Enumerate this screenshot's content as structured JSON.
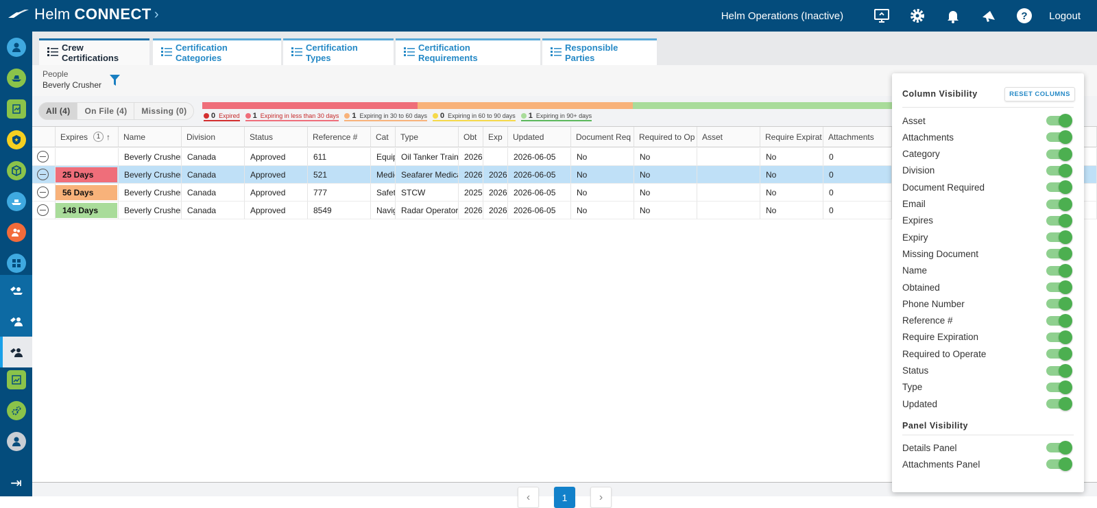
{
  "app": {
    "name_light": "Helm",
    "name_bold": "CONNECT",
    "chevron": "›"
  },
  "header": {
    "org": "Helm Operations (Inactive)",
    "logout": "Logout",
    "icons": [
      "monitor-icon",
      "gear-icon",
      "bell-icon",
      "megaphone-icon",
      "help-icon"
    ]
  },
  "sidebar": {
    "icons": [
      "user",
      "boat",
      "clipboard",
      "badge",
      "cube",
      "ship",
      "people",
      "grid",
      "crew-ship",
      "crew-person",
      "crew-active",
      "chart",
      "gears",
      "profile"
    ],
    "collapse": "⇥"
  },
  "tabs": [
    {
      "label": "Crew Certifications"
    },
    {
      "label": "Certification Categories"
    },
    {
      "label": "Certification Types"
    },
    {
      "label": "Certification Requirements"
    },
    {
      "label": "Responsible Parties"
    }
  ],
  "filter": {
    "label": "People",
    "value": "Beverly Crusher"
  },
  "segments": {
    "all": "All (4)",
    "onfile": "On File (4)",
    "missing": "Missing (0)"
  },
  "progress": {
    "colors": [
      "#ef6e7a",
      "#f8b27a",
      "#a9dc9a"
    ],
    "fractions": [
      0.25,
      0.25,
      0.5
    ]
  },
  "legend": [
    {
      "count": "0",
      "text": "Expired",
      "color": "#d32f2f",
      "line": "#d32f2f",
      "textcolor": "#c62828"
    },
    {
      "count": "1",
      "text": "Expiring in less than 30 days",
      "color": "#ef6e7a",
      "line": "#ef6e7a",
      "textcolor": "#c62828"
    },
    {
      "count": "1",
      "text": "Expiring in 30 to 60 days",
      "color": "#f8b27a",
      "line": "#f8b27a",
      "textcolor": "#444"
    },
    {
      "count": "0",
      "text": "Expiring in 60 to 90 days",
      "color": "#f5d94a",
      "line": "#f5d94a",
      "textcolor": "#444"
    },
    {
      "count": "1",
      "text": "Expiring in 90+ days",
      "color": "#a9dc9a",
      "line": "#5cb85c",
      "textcolor": "#444"
    }
  ],
  "grid": {
    "headers": {
      "expires": "Expires",
      "sortcount": "1",
      "name": "Name",
      "division": "Division",
      "status": "Status",
      "ref": "Reference #",
      "cat": "Cat",
      "type": "Type",
      "obt": "Obt",
      "exp": "Exp",
      "updated": "Updated",
      "docreq": "Document Req",
      "reqop": "Required to Op",
      "asset": "Asset",
      "reqexp": "Require Expirat",
      "attach": "Attachments"
    },
    "rows": [
      {
        "badge": "",
        "badgecolor": "",
        "name": "Beverly Crusher",
        "division": "Canada",
        "status": "Approved",
        "ref": "611",
        "cat": "Equip",
        "type": "Oil Tanker Trainin",
        "obt": "2026-",
        "exp": "",
        "updated": "2026-06-05",
        "docreq": "No",
        "reqop": "No",
        "asset": "",
        "reqexp": "No",
        "attach": "0"
      },
      {
        "badge": "25 Days",
        "badgecolor": "#ef6e7a",
        "name": "Beverly Crusher",
        "division": "Canada",
        "status": "Approved",
        "ref": "521",
        "cat": "Medic",
        "type": "Seafarer Medical",
        "obt": "2026-",
        "exp": "2026-",
        "updated": "2026-06-05",
        "docreq": "No",
        "reqop": "No",
        "asset": "",
        "reqexp": "No",
        "attach": "0"
      },
      {
        "badge": "56 Days",
        "badgecolor": "#f8b27a",
        "name": "Beverly Crusher",
        "division": "Canada",
        "status": "Approved",
        "ref": "777",
        "cat": "Safety",
        "type": "STCW",
        "obt": "2025-",
        "exp": "2026-",
        "updated": "2026-06-05",
        "docreq": "No",
        "reqop": "No",
        "asset": "",
        "reqexp": "No",
        "attach": "0"
      },
      {
        "badge": "148 Days",
        "badgecolor": "#a9dc9a",
        "name": "Beverly Crusher",
        "division": "Canada",
        "status": "Approved",
        "ref": "8549",
        "cat": "Navig",
        "type": "Radar Operator",
        "obt": "2026-",
        "exp": "2026-",
        "updated": "2026-06-05",
        "docreq": "No",
        "reqop": "No",
        "asset": "",
        "reqexp": "No",
        "attach": "0"
      }
    ]
  },
  "pager": {
    "prev": "‹",
    "page": "1",
    "next": "›"
  },
  "panel": {
    "column_title": "Column Visibility",
    "reset": "RESET COLUMNS",
    "columns": [
      "Asset",
      "Attachments",
      "Category",
      "Division",
      "Document Required",
      "Email",
      "Expires",
      "Expiry",
      "Missing Document",
      "Name",
      "Obtained",
      "Phone Number",
      "Reference #",
      "Require Expiration",
      "Required to Operate",
      "Status",
      "Type",
      "Updated"
    ],
    "panel_title": "Panel Visibility",
    "panels": [
      "Details Panel",
      "Attachments Panel"
    ]
  }
}
